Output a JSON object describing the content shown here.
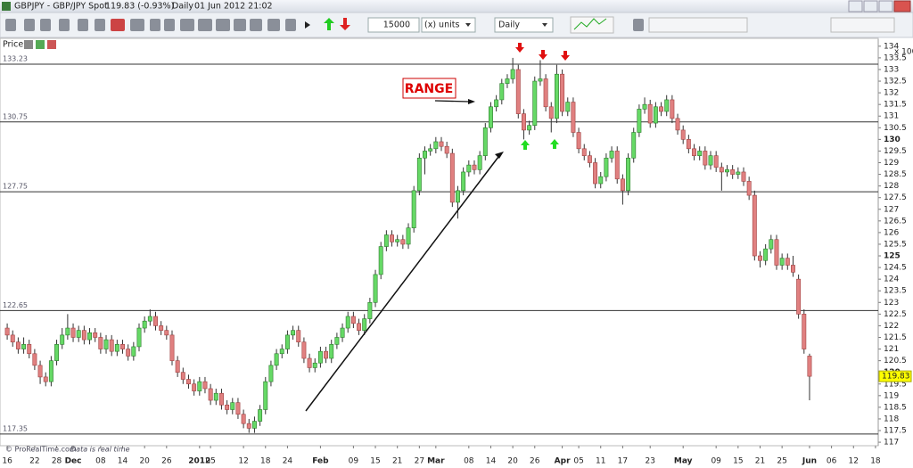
{
  "window": {
    "title": "GBPJPY - GBP/JPY Spot",
    "quote": "119.83 (-0.93%)",
    "period": "Daily",
    "datetime": "01 Jun 2012 21:02"
  },
  "toolbar": {
    "quantity": "15000",
    "units": "(x) units",
    "timeframe": "Daily"
  },
  "panel_label": "Price",
  "footer": {
    "brand": "© ProRealTime.com",
    "status": "Data is real time"
  },
  "chart_data": {
    "type": "candlestick",
    "categories": [
      "16",
      null,
      null,
      null,
      null,
      "22",
      null,
      null,
      null,
      "28",
      null,
      null,
      "Dec",
      null,
      null,
      null,
      null,
      "08",
      null,
      null,
      null,
      "14",
      null,
      null,
      null,
      "20",
      null,
      null,
      null,
      "26",
      null,
      null,
      null,
      null,
      null,
      "2012",
      null,
      "05",
      null,
      null,
      null,
      null,
      null,
      "12",
      null,
      null,
      null,
      "18",
      null,
      null,
      null,
      "24",
      null,
      null,
      null,
      null,
      null,
      "Feb",
      null,
      null,
      null,
      null,
      null,
      "09",
      null,
      null,
      null,
      "15",
      null,
      null,
      null,
      "21",
      null,
      null,
      null,
      "27",
      null,
      null,
      "Mar",
      null,
      null,
      null,
      null,
      null,
      "08",
      null,
      null,
      null,
      "14",
      null,
      null,
      null,
      "20",
      null,
      null,
      null,
      "26",
      null,
      null,
      null,
      null,
      "Apr",
      null,
      null,
      "05",
      null,
      null,
      null,
      "11",
      null,
      null,
      null,
      "17",
      null,
      null,
      null,
      null,
      "23",
      null,
      null,
      null,
      null,
      null,
      "May",
      null,
      null,
      null,
      null,
      null,
      "09",
      null,
      null,
      null,
      "15",
      null,
      null,
      null,
      "21",
      null,
      null,
      null,
      "25",
      null,
      null,
      null,
      null,
      "Jun",
      null,
      null,
      null,
      "06",
      null,
      null,
      null,
      "12",
      null,
      null,
      null,
      "18"
    ],
    "candles": [
      [
        121.9,
        122.1,
        121.4,
        121.6
      ],
      [
        121.6,
        121.8,
        121.1,
        121.3
      ],
      [
        121.3,
        121.5,
        120.8,
        121.0
      ],
      [
        121.0,
        121.5,
        120.8,
        121.2
      ],
      [
        121.2,
        121.4,
        120.6,
        120.8
      ],
      [
        120.8,
        121.0,
        120.1,
        120.3
      ],
      [
        120.3,
        120.5,
        119.5,
        119.8
      ],
      [
        119.8,
        120.0,
        119.4,
        119.6
      ],
      [
        119.6,
        120.7,
        119.4,
        120.5
      ],
      [
        120.5,
        121.4,
        120.3,
        121.2
      ],
      [
        121.2,
        121.9,
        121.0,
        121.6
      ],
      [
        121.6,
        122.5,
        121.4,
        121.9
      ],
      [
        121.9,
        122.1,
        121.3,
        121.5
      ],
      [
        121.5,
        122.0,
        121.3,
        121.8
      ],
      [
        121.8,
        122.0,
        121.2,
        121.4
      ],
      [
        121.4,
        121.9,
        121.2,
        121.7
      ],
      [
        121.7,
        121.9,
        121.3,
        121.5
      ],
      [
        121.5,
        121.7,
        120.8,
        121.0
      ],
      [
        121.0,
        121.6,
        120.8,
        121.4
      ],
      [
        121.4,
        121.6,
        120.7,
        120.9
      ],
      [
        120.9,
        121.4,
        120.7,
        121.2
      ],
      [
        121.2,
        121.4,
        120.8,
        121.0
      ],
      [
        121.0,
        121.2,
        120.5,
        120.7
      ],
      [
        120.7,
        121.3,
        120.5,
        121.1
      ],
      [
        121.1,
        122.1,
        120.9,
        121.9
      ],
      [
        121.9,
        122.4,
        121.7,
        122.2
      ],
      [
        122.2,
        122.7,
        122.0,
        122.4
      ],
      [
        122.4,
        122.6,
        121.8,
        122.0
      ],
      [
        122.0,
        122.2,
        121.6,
        121.8
      ],
      [
        121.8,
        122.0,
        121.4,
        121.6
      ],
      [
        121.6,
        121.8,
        120.3,
        120.5
      ],
      [
        120.5,
        120.7,
        119.8,
        120.0
      ],
      [
        120.0,
        120.2,
        119.5,
        119.7
      ],
      [
        119.7,
        119.9,
        119.3,
        119.5
      ],
      [
        119.5,
        119.7,
        119.0,
        119.2
      ],
      [
        119.2,
        119.8,
        119.0,
        119.6
      ],
      [
        119.6,
        119.8,
        119.1,
        119.3
      ],
      [
        119.3,
        119.5,
        118.6,
        118.8
      ],
      [
        118.8,
        119.3,
        118.6,
        119.1
      ],
      [
        119.1,
        119.3,
        118.4,
        118.6
      ],
      [
        118.6,
        118.8,
        118.2,
        118.4
      ],
      [
        118.4,
        118.9,
        118.2,
        118.7
      ],
      [
        118.7,
        118.9,
        118.0,
        118.2
      ],
      [
        118.2,
        118.4,
        117.6,
        117.8
      ],
      [
        117.8,
        118.0,
        117.4,
        117.6
      ],
      [
        117.6,
        118.1,
        117.4,
        117.9
      ],
      [
        117.9,
        118.6,
        117.7,
        118.4
      ],
      [
        118.4,
        119.8,
        118.2,
        119.6
      ],
      [
        119.6,
        120.5,
        119.4,
        120.3
      ],
      [
        120.3,
        121.0,
        120.1,
        120.8
      ],
      [
        120.8,
        121.2,
        120.6,
        121.0
      ],
      [
        121.0,
        121.8,
        120.8,
        121.6
      ],
      [
        121.6,
        122.0,
        121.4,
        121.8
      ],
      [
        121.8,
        122.0,
        121.1,
        121.3
      ],
      [
        121.3,
        121.5,
        120.4,
        120.6
      ],
      [
        120.6,
        120.8,
        120.0,
        120.2
      ],
      [
        120.2,
        120.6,
        120.0,
        120.4
      ],
      [
        120.4,
        121.1,
        120.2,
        120.9
      ],
      [
        120.9,
        121.1,
        120.4,
        120.6
      ],
      [
        120.6,
        121.4,
        120.4,
        121.2
      ],
      [
        121.2,
        121.7,
        121.0,
        121.5
      ],
      [
        121.5,
        122.1,
        121.3,
        121.9
      ],
      [
        121.9,
        122.6,
        121.7,
        122.4
      ],
      [
        122.4,
        122.6,
        121.9,
        122.1
      ],
      [
        122.1,
        122.3,
        121.6,
        121.8
      ],
      [
        121.8,
        122.5,
        121.6,
        122.3
      ],
      [
        122.3,
        123.2,
        122.1,
        123.0
      ],
      [
        123.0,
        124.4,
        122.8,
        124.2
      ],
      [
        124.2,
        125.6,
        124.0,
        125.4
      ],
      [
        125.4,
        126.1,
        125.2,
        125.9
      ],
      [
        125.9,
        126.1,
        125.4,
        125.6
      ],
      [
        125.6,
        125.9,
        125.4,
        125.7
      ],
      [
        125.7,
        125.9,
        125.3,
        125.5
      ],
      [
        125.5,
        126.4,
        125.3,
        126.2
      ],
      [
        126.2,
        128.0,
        126.0,
        127.8
      ],
      [
        127.8,
        129.4,
        127.6,
        129.2
      ],
      [
        129.2,
        129.7,
        128.5,
        129.5
      ],
      [
        129.5,
        129.8,
        129.3,
        129.6
      ],
      [
        129.6,
        130.1,
        129.4,
        129.9
      ],
      [
        129.9,
        130.1,
        129.5,
        129.7
      ],
      [
        129.7,
        129.9,
        129.2,
        129.4
      ],
      [
        129.4,
        129.6,
        127.1,
        127.3
      ],
      [
        127.3,
        128.0,
        126.6,
        127.8
      ],
      [
        127.8,
        128.8,
        127.6,
        128.6
      ],
      [
        128.6,
        129.1,
        128.4,
        128.9
      ],
      [
        128.9,
        129.1,
        128.5,
        128.7
      ],
      [
        128.7,
        129.5,
        128.5,
        129.3
      ],
      [
        129.3,
        130.7,
        129.1,
        130.5
      ],
      [
        130.5,
        131.6,
        130.3,
        131.4
      ],
      [
        131.4,
        131.9,
        131.2,
        131.7
      ],
      [
        131.7,
        132.6,
        131.5,
        132.4
      ],
      [
        132.4,
        132.8,
        132.2,
        132.6
      ],
      [
        132.6,
        133.5,
        132.4,
        133.0
      ],
      [
        133.0,
        133.2,
        130.9,
        131.1
      ],
      [
        131.1,
        131.3,
        130.0,
        130.4
      ],
      [
        130.4,
        130.8,
        130.2,
        130.6
      ],
      [
        130.6,
        132.7,
        130.4,
        132.5
      ],
      [
        132.5,
        133.4,
        132.3,
        132.6
      ],
      [
        132.6,
        132.8,
        131.2,
        131.4
      ],
      [
        131.4,
        131.6,
        130.3,
        130.9
      ],
      [
        130.9,
        133.2,
        130.7,
        132.8
      ],
      [
        132.8,
        133.0,
        131.0,
        131.2
      ],
      [
        131.2,
        131.8,
        131.0,
        131.6
      ],
      [
        131.6,
        131.8,
        130.1,
        130.3
      ],
      [
        130.3,
        130.5,
        129.4,
        129.6
      ],
      [
        129.6,
        129.8,
        129.1,
        129.3
      ],
      [
        129.3,
        129.5,
        128.8,
        129.0
      ],
      [
        129.0,
        129.2,
        127.9,
        128.1
      ],
      [
        128.1,
        128.6,
        127.9,
        128.4
      ],
      [
        128.4,
        129.4,
        128.2,
        129.2
      ],
      [
        129.2,
        129.7,
        129.0,
        129.5
      ],
      [
        129.5,
        129.7,
        128.1,
        128.3
      ],
      [
        128.3,
        128.5,
        127.2,
        127.8
      ],
      [
        127.8,
        129.4,
        127.6,
        129.2
      ],
      [
        129.2,
        130.5,
        129.0,
        130.3
      ],
      [
        130.3,
        131.5,
        130.1,
        131.3
      ],
      [
        131.3,
        131.8,
        131.1,
        131.5
      ],
      [
        131.5,
        131.7,
        130.5,
        130.7
      ],
      [
        130.7,
        131.6,
        130.5,
        131.4
      ],
      [
        131.4,
        131.6,
        131.0,
        131.2
      ],
      [
        131.2,
        131.9,
        131.0,
        131.7
      ],
      [
        131.7,
        131.9,
        130.7,
        130.9
      ],
      [
        130.9,
        131.1,
        130.2,
        130.4
      ],
      [
        130.4,
        130.6,
        129.8,
        130.0
      ],
      [
        130.0,
        130.2,
        129.4,
        129.6
      ],
      [
        129.6,
        129.8,
        129.1,
        129.3
      ],
      [
        129.3,
        129.7,
        129.1,
        129.5
      ],
      [
        129.5,
        129.7,
        128.7,
        128.9
      ],
      [
        128.9,
        129.5,
        128.7,
        129.3
      ],
      [
        129.3,
        129.5,
        128.6,
        128.8
      ],
      [
        128.8,
        129.0,
        127.8,
        128.6
      ],
      [
        128.6,
        128.9,
        128.4,
        128.7
      ],
      [
        128.7,
        128.9,
        128.3,
        128.5
      ],
      [
        128.5,
        128.8,
        128.3,
        128.6
      ],
      [
        128.6,
        128.8,
        128.0,
        128.2
      ],
      [
        128.2,
        128.4,
        127.4,
        127.6
      ],
      [
        127.6,
        127.8,
        124.8,
        125.0
      ],
      [
        125.0,
        125.2,
        124.5,
        124.8
      ],
      [
        124.8,
        125.5,
        124.6,
        125.3
      ],
      [
        125.3,
        125.9,
        125.1,
        125.7
      ],
      [
        125.7,
        125.9,
        124.4,
        124.6
      ],
      [
        124.6,
        125.1,
        124.4,
        124.9
      ],
      [
        124.9,
        125.1,
        124.4,
        124.6
      ],
      [
        124.6,
        125.0,
        124.1,
        124.3
      ],
      [
        124.0,
        124.2,
        122.3,
        122.5
      ],
      [
        122.5,
        122.7,
        120.8,
        121.0
      ],
      [
        120.7,
        120.8,
        118.8,
        119.83
      ],
      null,
      null,
      null,
      null,
      null,
      null,
      null,
      null,
      null,
      null,
      null,
      null
    ],
    "colors": {
      "up": "#66d966",
      "down": "#e08080"
    },
    "ylim": [
      116.85,
      134.3
    ],
    "yticks": [
      117,
      117.5,
      118,
      118.5,
      119,
      119.5,
      120,
      120.5,
      121,
      121.5,
      122,
      122.5,
      123,
      123.5,
      124,
      124.5,
      125,
      125.5,
      126,
      126.5,
      127,
      127.5,
      128,
      128.5,
      129,
      129.5,
      130,
      130.5,
      131,
      131.5,
      132,
      132.5,
      133,
      133.5,
      134
    ],
    "y_multiplier": "x 100",
    "levels": [
      133.23,
      130.75,
      127.75,
      122.65,
      117.35
    ],
    "annotation": "RANGE"
  }
}
